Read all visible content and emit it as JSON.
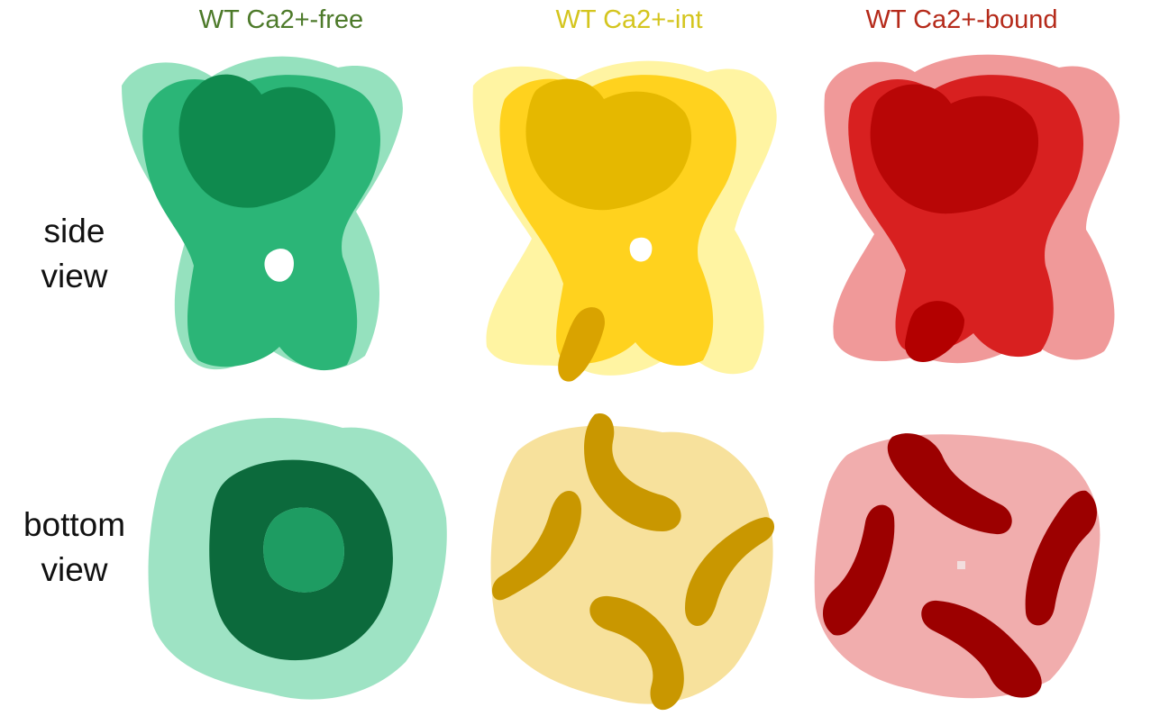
{
  "columns": [
    {
      "title": "WT Ca2+-free",
      "color": "#4d7a2a",
      "base": "#3ec889",
      "dark": "#128a52",
      "deep": "#0c6a3c"
    },
    {
      "title": "WT Ca2+-int",
      "color": "#d4c51e",
      "base": "#ffe54a",
      "dark": "#e5b800",
      "deep": "#b88a00"
    },
    {
      "title": "WT Ca2+-bound",
      "color": "#b52a1a",
      "base": "#e23a3a",
      "dark": "#c20b0b",
      "deep": "#8a0000"
    }
  ],
  "rows": [
    {
      "label_line1": "side",
      "label_line2": "view"
    },
    {
      "label_line1": "bottom",
      "label_line2": "view"
    }
  ]
}
